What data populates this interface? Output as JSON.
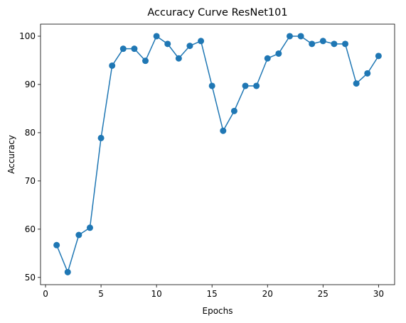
{
  "chart_data": {
    "type": "line",
    "title": "Accuracy Curve ResNet101",
    "xlabel": "Epochs",
    "ylabel": "Accuracy",
    "xlim": [
      -0.45,
      31.45
    ],
    "ylim": [
      48.5,
      102.5
    ],
    "xticks": [
      0,
      5,
      10,
      15,
      20,
      25,
      30
    ],
    "yticks": [
      50,
      60,
      70,
      80,
      90,
      100
    ],
    "grid": false,
    "legend": "none",
    "color": "#1f77b4",
    "marker": "circle",
    "series": [
      {
        "x": [
          1,
          2,
          3,
          4,
          5,
          6,
          7,
          8,
          9,
          10,
          11,
          12,
          13,
          14,
          15,
          16,
          17,
          18,
          19,
          20,
          21,
          22,
          23,
          24,
          25,
          26,
          27,
          28,
          29,
          30
        ],
        "y": [
          56.7,
          51.1,
          58.8,
          60.3,
          78.9,
          93.9,
          97.4,
          97.4,
          94.9,
          100.0,
          98.4,
          95.4,
          98.0,
          99.0,
          89.7,
          80.4,
          84.5,
          89.7,
          89.7,
          95.4,
          96.4,
          100.0,
          100.0,
          98.4,
          99.0,
          98.4,
          98.4,
          90.2,
          92.3,
          95.9
        ]
      }
    ]
  }
}
